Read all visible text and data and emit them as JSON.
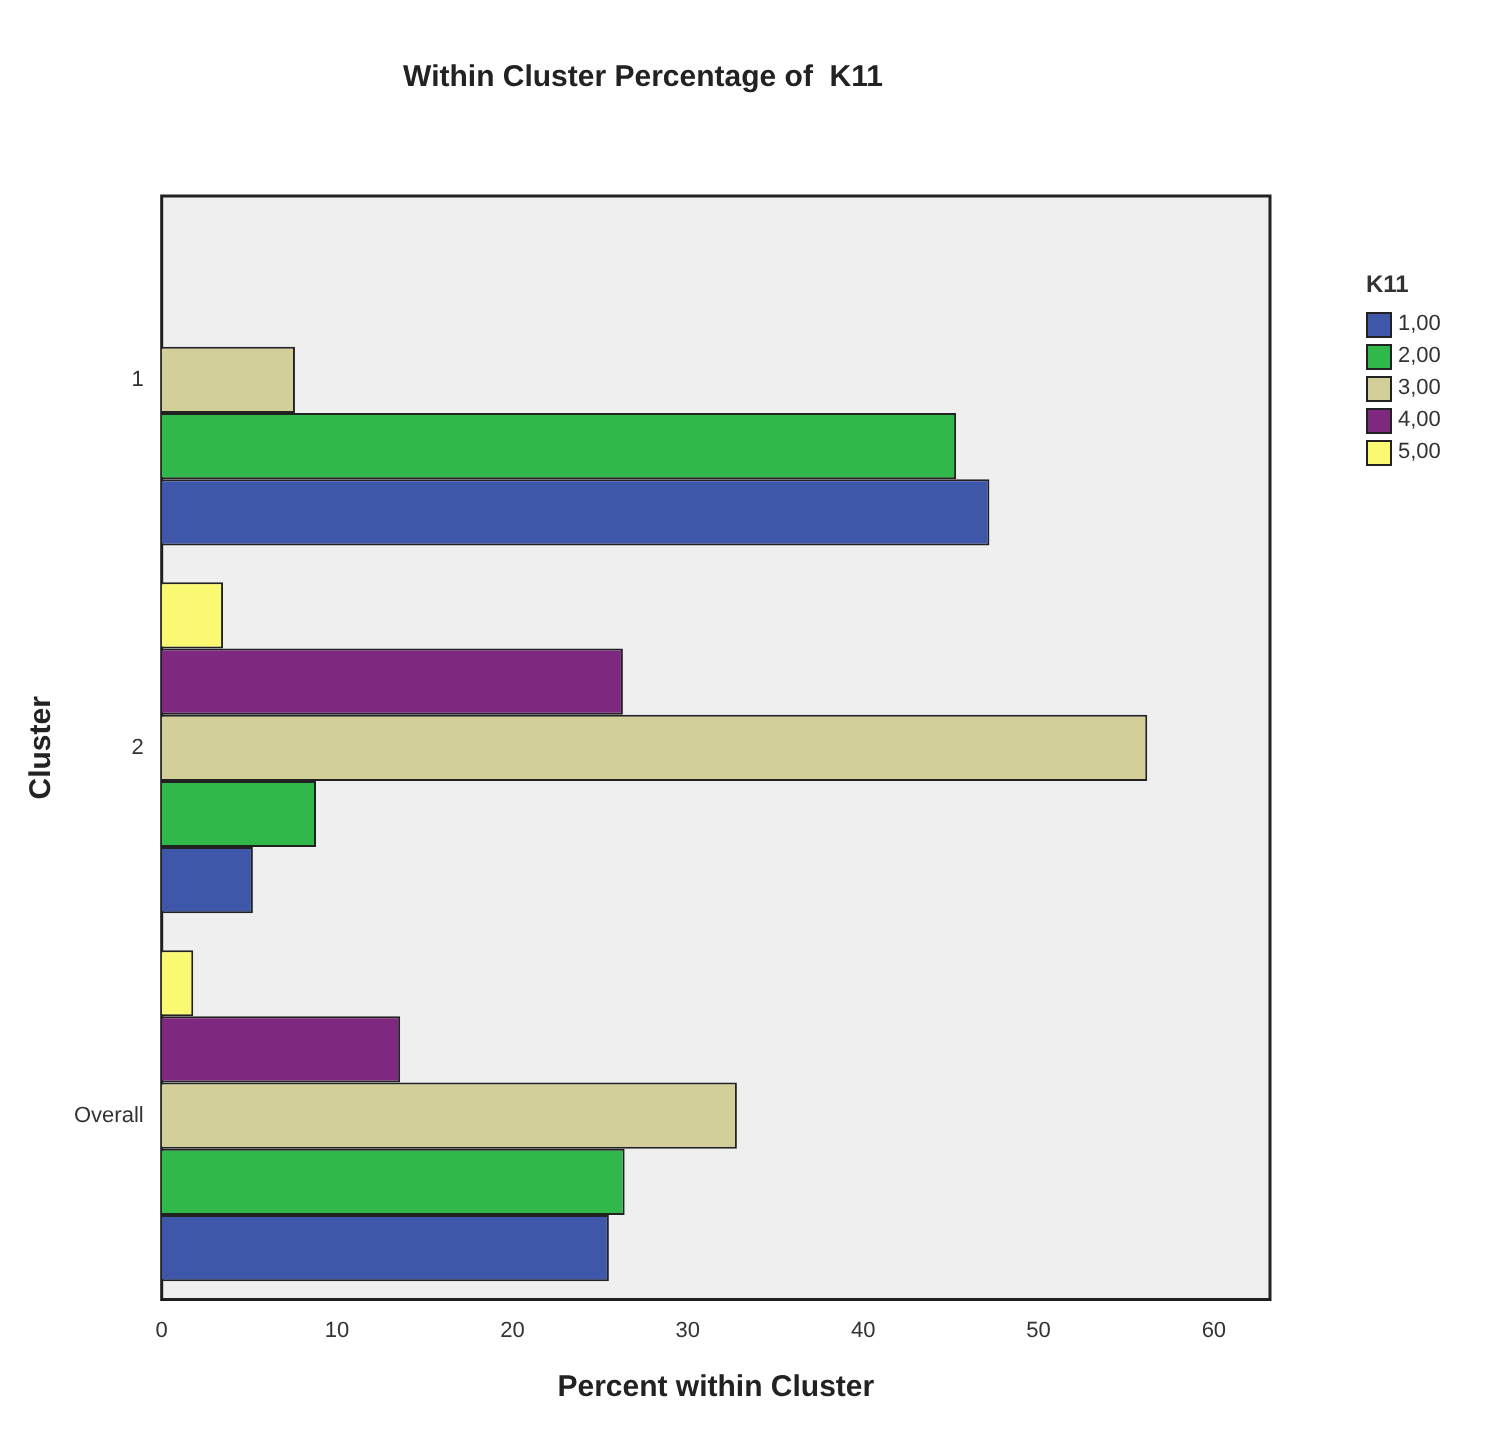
{
  "chart_data": {
    "type": "bar",
    "orientation": "horizontal",
    "title": "Within Cluster Percentage of  K11",
    "xlabel": "Percent within Cluster",
    "ylabel": "Cluster",
    "legend_title": "K11",
    "legend": "top right",
    "grid": false,
    "categories": [
      "1",
      "2",
      "Overall"
    ],
    "xlim": [
      0,
      63.2
    ],
    "xticks": [
      0,
      10,
      20,
      30,
      40,
      50,
      60
    ],
    "series": [
      {
        "name": "1,00",
        "color": "#3f57a8",
        "values": [
          47.2,
          5.2,
          25.5
        ]
      },
      {
        "name": "2,00",
        "color": "#30b84a",
        "values": [
          45.3,
          8.8,
          26.4
        ]
      },
      {
        "name": "3,00",
        "color": "#d3cf98",
        "values": [
          7.6,
          56.2,
          32.8
        ]
      },
      {
        "name": "4,00",
        "color": "#7f2880",
        "values": [
          null,
          26.3,
          13.6
        ]
      },
      {
        "name": "5,00",
        "color": "#fbf872",
        "values": [
          null,
          3.5,
          1.8
        ]
      }
    ]
  }
}
